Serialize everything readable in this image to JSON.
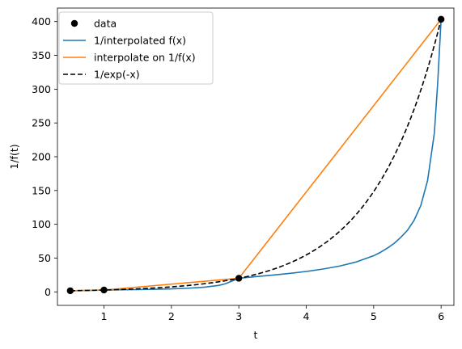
{
  "chart_data": {
    "type": "line",
    "xlabel": "t",
    "ylabel": "1/f(t)",
    "xlim": [
      0.31,
      6.19
    ],
    "ylim": [
      -20.0,
      420.0
    ],
    "xticks": [
      1,
      2,
      3,
      4,
      5,
      6
    ],
    "yticks": [
      0,
      50,
      100,
      150,
      200,
      250,
      300,
      350,
      400
    ],
    "grid": false,
    "legend_position": "top-left",
    "series": [
      {
        "name": "data",
        "style": "markers",
        "color": "#000000",
        "x": [
          0.5,
          1,
          3,
          6
        ],
        "y": [
          1.65,
          2.72,
          20.09,
          403.43
        ]
      },
      {
        "name": "1/interpolated f(x)",
        "style": "solid",
        "color": "#1f77b4",
        "x": [
          0.5,
          0.75,
          1.0,
          1.25,
          1.5,
          1.75,
          2.0,
          2.25,
          2.5,
          2.7,
          2.8,
          2.9,
          3.0,
          3.25,
          3.5,
          3.75,
          4.0,
          4.25,
          4.5,
          4.75,
          5.0,
          5.1,
          5.2,
          5.3,
          5.4,
          5.5,
          5.6,
          5.7,
          5.8,
          5.9,
          5.95,
          6.0
        ],
        "y": [
          1.65,
          2.1,
          2.72,
          3.0,
          3.3,
          3.8,
          4.4,
          5.4,
          7.0,
          9.5,
          12.0,
          16.0,
          20.09,
          22.5,
          24.8,
          27.3,
          30.2,
          33.8,
          38.3,
          44.5,
          53.5,
          58.5,
          64.5,
          71.5,
          80.5,
          91.0,
          106.0,
          128.0,
          165.0,
          235.0,
          310.0,
          403.43
        ]
      },
      {
        "name": "interpolate on 1/f(x)",
        "style": "solid",
        "color": "#ff7f0e",
        "x": [
          0.5,
          1,
          3,
          6
        ],
        "y": [
          1.65,
          2.72,
          20.09,
          403.43
        ]
      },
      {
        "name": "1/exp(-x)",
        "style": "dashed",
        "color": "#000000",
        "fn": "exp"
      }
    ]
  }
}
